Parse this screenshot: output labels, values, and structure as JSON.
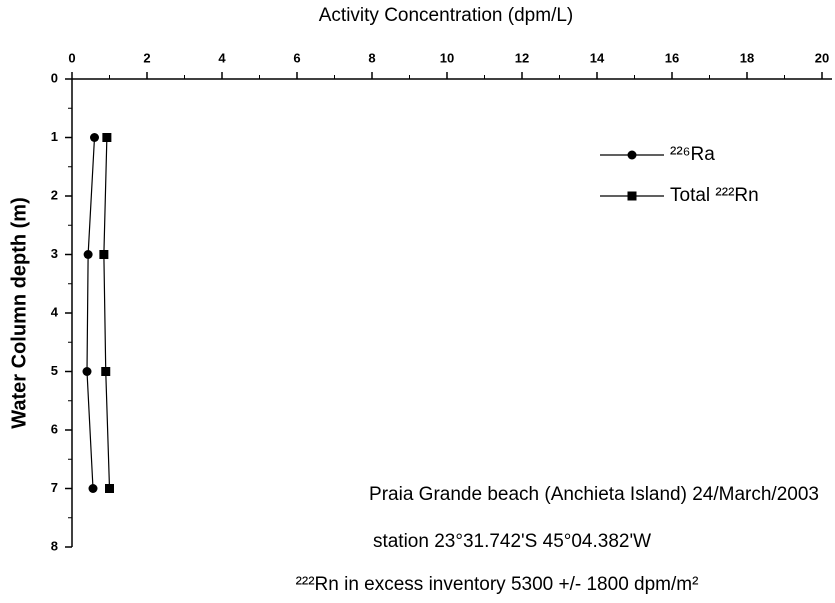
{
  "chart_data": {
    "type": "line",
    "xlabel": "Activity Concentration (dpm/L)",
    "ylabel": "Water Column depth (m)",
    "depths": [
      1,
      3,
      5,
      7
    ],
    "series": [
      {
        "name": "²²⁶Ra",
        "color": "#000000",
        "marker": "circle",
        "values": [
          0.6,
          0.43,
          0.4,
          0.56
        ]
      },
      {
        "name": "Total ²²²Rn",
        "color": "#000000",
        "marker": "square",
        "values": [
          0.93,
          0.85,
          0.9,
          1.0
        ]
      }
    ],
    "xlim": [
      0,
      20
    ],
    "xticks": [
      0,
      2,
      4,
      6,
      8,
      10,
      12,
      14,
      16,
      18,
      20
    ],
    "ylim": [
      0,
      8
    ],
    "yticks": [
      0,
      1,
      2,
      3,
      4,
      5,
      6,
      7,
      8
    ],
    "y_inverted": true,
    "x_axis_top": true,
    "legend": "upper right",
    "annotations": [
      "Praia Grande beach (Anchieta Island) 24/March/2003",
      "station 23°31.742'S 45°04.382'W",
      "²²²Rn in excess inventory 5300 +/- 1800 dpm/m²"
    ]
  }
}
